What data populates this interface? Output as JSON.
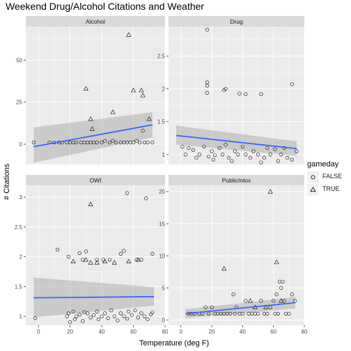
{
  "figure": {
    "title": "Weekend Drug/Alcohol Citations and Weather",
    "ylabel": "# Citations",
    "xlabel": "Temperature (deg F)"
  },
  "legend": {
    "title": "gameday",
    "items": [
      {
        "label": "FALSE",
        "shape": "circle"
      },
      {
        "label": "TRUE",
        "shape": "triangle"
      }
    ]
  },
  "colors": {
    "panel_bg": "#ebebeb",
    "grid_major": "#ffffff",
    "strip_bg": "#d9d9d9",
    "trend_line": "#3366ff",
    "ribbon": "#999999",
    "axis_text": "#4d4d4d"
  },
  "chart_data": [
    {
      "type": "scatter",
      "panel": "Alcohol",
      "xlim": [
        -8,
        80
      ],
      "ylim": [
        -12,
        70
      ],
      "xticks": [
        0,
        20,
        40,
        60,
        80
      ],
      "yticks": [
        0,
        25,
        50
      ],
      "x_tick_labels_shown": false,
      "series": [
        {
          "name": "FALSE",
          "shape": "circle",
          "points": [
            [
              -3,
              1
            ],
            [
              7,
              1
            ],
            [
              10,
              1
            ],
            [
              13,
              1
            ],
            [
              15,
              1
            ],
            [
              18,
              1
            ],
            [
              20,
              1
            ],
            [
              22,
              1
            ],
            [
              24,
              1
            ],
            [
              27,
              1
            ],
            [
              29,
              1
            ],
            [
              31,
              1
            ],
            [
              33,
              1
            ],
            [
              35,
              1
            ],
            [
              37,
              1
            ],
            [
              40,
              1
            ],
            [
              42,
              2
            ],
            [
              45,
              1
            ],
            [
              47,
              2
            ],
            [
              49,
              1
            ],
            [
              52,
              1
            ],
            [
              54,
              1
            ],
            [
              56,
              1
            ],
            [
              58,
              1
            ],
            [
              60,
              1
            ],
            [
              62,
              2
            ],
            [
              64,
              1
            ],
            [
              66,
              8
            ],
            [
              67,
              1
            ],
            [
              69,
              1
            ],
            [
              72,
              1
            ]
          ]
        },
        {
          "name": "TRUE",
          "shape": "triangle",
          "points": [
            [
              30,
              33
            ],
            [
              33,
              15
            ],
            [
              34,
              9
            ],
            [
              47,
              19
            ],
            [
              57,
              65
            ],
            [
              60,
              32
            ],
            [
              65,
              32
            ],
            [
              66,
              29
            ],
            [
              70,
              15
            ]
          ]
        }
      ],
      "trend": {
        "x": [
          -3,
          72
        ],
        "y": [
          -1.5,
          11.5
        ],
        "ci_lower": [
          -11,
          4
        ],
        "ci_upper": [
          10,
          19
        ]
      }
    },
    {
      "type": "scatter",
      "panel": "Drug",
      "xlim": [
        -8,
        80
      ],
      "ylim": [
        0.85,
        2.95
      ],
      "xticks": [
        0,
        20,
        40,
        60,
        80
      ],
      "yticks": [
        1.0,
        1.5,
        2.0,
        2.5
      ],
      "x_tick_labels_shown": false,
      "series": [
        {
          "name": "FALSE",
          "shape": "circle",
          "points": [
            [
              1,
              1.12
            ],
            [
              3,
              1.0
            ],
            [
              5,
              1.1
            ],
            [
              8,
              1.07
            ],
            [
              10,
              0.95
            ],
            [
              12,
              1.0
            ],
            [
              15,
              1.12
            ],
            [
              18,
              0.97
            ],
            [
              20,
              1.05
            ],
            [
              21,
              0.92
            ],
            [
              22,
              0.99
            ],
            [
              25,
              1.1
            ],
            [
              27,
              1.0
            ],
            [
              29,
              1.15
            ],
            [
              31,
              0.95
            ],
            [
              33,
              0.9
            ],
            [
              35,
              1.05
            ],
            [
              37,
              1.0
            ],
            [
              40,
              1.12
            ],
            [
              42,
              1.0
            ],
            [
              45,
              0.95
            ],
            [
              47,
              1.05
            ],
            [
              50,
              1.0
            ],
            [
              52,
              0.88
            ],
            [
              54,
              0.95
            ],
            [
              56,
              1.1
            ],
            [
              58,
              1.0
            ],
            [
              61,
              1.08
            ],
            [
              63,
              0.9
            ],
            [
              65,
              1.0
            ],
            [
              67,
              1.1
            ],
            [
              69,
              0.95
            ],
            [
              72,
              0.92
            ],
            [
              75,
              1.05
            ],
            [
              17,
              2.9
            ],
            [
              17,
              2.1
            ],
            [
              17,
              2.05
            ],
            [
              17,
              1.94
            ],
            [
              28,
              1.98
            ],
            [
              29,
              2.0
            ],
            [
              38,
              1.93
            ],
            [
              42,
              1.92
            ],
            [
              52,
              1.92
            ],
            [
              72,
              2.07
            ]
          ]
        },
        {
          "name": "TRUE",
          "shape": "triangle",
          "points": []
        }
      ],
      "trend": {
        "x": [
          -3,
          75
        ],
        "y": [
          1.29,
          1.09
        ],
        "ci_lower": [
          1.15,
          0.98
        ],
        "ci_upper": [
          1.44,
          1.2
        ]
      }
    },
    {
      "type": "scatter",
      "panel": "OWI",
      "xlim": [
        -8,
        80
      ],
      "ylim": [
        0.85,
        3.2
      ],
      "xticks": [
        0,
        20,
        40,
        60,
        80
      ],
      "yticks": [
        1.0,
        1.5,
        2.0,
        2.5,
        3.0
      ],
      "x_tick_labels_shown": true,
      "series": [
        {
          "name": "FALSE",
          "shape": "circle",
          "points": [
            [
              -2,
              0.97
            ],
            [
              18,
              1.0
            ],
            [
              19,
              1.05
            ],
            [
              20,
              0.9
            ],
            [
              22,
              1.08
            ],
            [
              23,
              0.95
            ],
            [
              24,
              1.0
            ],
            [
              26,
              1.03
            ],
            [
              28,
              0.92
            ],
            [
              29,
              1.07
            ],
            [
              31,
              1.05
            ],
            [
              33,
              0.98
            ],
            [
              35,
              1.02
            ],
            [
              37,
              1.08
            ],
            [
              38,
              0.95
            ],
            [
              40,
              1.0
            ],
            [
              42,
              1.05
            ],
            [
              44,
              0.97
            ],
            [
              46,
              1.1
            ],
            [
              48,
              1.0
            ],
            [
              50,
              0.93
            ],
            [
              52,
              1.05
            ],
            [
              54,
              1.0
            ],
            [
              56,
              0.96
            ],
            [
              57,
              1.08
            ],
            [
              59,
              1.02
            ],
            [
              61,
              1.1
            ],
            [
              63,
              0.98
            ],
            [
              65,
              1.05
            ],
            [
              67,
              1.0
            ],
            [
              69,
              0.95
            ],
            [
              71,
              1.03
            ],
            [
              72,
              1.07
            ],
            [
              12,
              2.12
            ],
            [
              19,
              2.0
            ],
            [
              26,
              2.06
            ],
            [
              28,
              1.95
            ],
            [
              30,
              2.09
            ],
            [
              37,
              1.95
            ],
            [
              41,
              1.95
            ],
            [
              45,
              1.95
            ],
            [
              52,
              2.05
            ],
            [
              54,
              2.1
            ],
            [
              62,
              1.95
            ],
            [
              65,
              1.95
            ],
            [
              72,
              2.05
            ],
            [
              56,
              3.07
            ],
            [
              68,
              2.98
            ]
          ]
        },
        {
          "name": "TRUE",
          "shape": "triangle",
          "points": [
            [
              33,
              2.88
            ],
            [
              22,
              1.92
            ],
            [
              30,
              1.95
            ],
            [
              33,
              1.9
            ],
            [
              37,
              1.9
            ],
            [
              42,
              1.92
            ],
            [
              48,
              1.9
            ],
            [
              57,
              1.92
            ],
            [
              63,
              1.95
            ]
          ]
        }
      ],
      "trend": {
        "x": [
          -3,
          73
        ],
        "y": [
          1.31,
          1.33
        ],
        "ci_lower": [
          0.98,
          1.18
        ],
        "ci_upper": [
          1.65,
          1.49
        ]
      }
    },
    {
      "type": "scatter",
      "panel": "PublicIntox",
      "xlim": [
        -8,
        80
      ],
      "ylim": [
        -0.8,
        21
      ],
      "xticks": [
        0,
        20,
        40,
        60,
        80
      ],
      "yticks": [
        0,
        5,
        10,
        15,
        20
      ],
      "x_tick_labels_shown": true,
      "series": [
        {
          "name": "FALSE",
          "shape": "circle",
          "points": [
            [
              5,
              1
            ],
            [
              7,
              1
            ],
            [
              9,
              1
            ],
            [
              12,
              1
            ],
            [
              14,
              1
            ],
            [
              16,
              2
            ],
            [
              18,
              1
            ],
            [
              20,
              2
            ],
            [
              22,
              1
            ],
            [
              24,
              1
            ],
            [
              26,
              1
            ],
            [
              28,
              1
            ],
            [
              30,
              1
            ],
            [
              32,
              1
            ],
            [
              34,
              4
            ],
            [
              35,
              1
            ],
            [
              36,
              2
            ],
            [
              38,
              1
            ],
            [
              40,
              1
            ],
            [
              42,
              3
            ],
            [
              44,
              1
            ],
            [
              46,
              1
            ],
            [
              48,
              1
            ],
            [
              50,
              1
            ],
            [
              52,
              3
            ],
            [
              54,
              1
            ],
            [
              56,
              1
            ],
            [
              58,
              2
            ],
            [
              60,
              3
            ],
            [
              61,
              1
            ],
            [
              62,
              4
            ],
            [
              63,
              1
            ],
            [
              64,
              6
            ],
            [
              65,
              5
            ],
            [
              66,
              6
            ],
            [
              67,
              3
            ],
            [
              68,
              1
            ],
            [
              70,
              1
            ],
            [
              72,
              4
            ],
            [
              74,
              3
            ]
          ]
        },
        {
          "name": "TRUE",
          "shape": "triangle",
          "points": [
            [
              28,
              8
            ],
            [
              45,
              3
            ],
            [
              48,
              2
            ],
            [
              55,
              2
            ],
            [
              58,
              20
            ],
            [
              62,
              9
            ],
            [
              65,
              3
            ]
          ]
        }
      ],
      "trend": {
        "x": [
          3,
          74
        ],
        "y": [
          1.0,
          2.7
        ],
        "ci_lower": [
          0.3,
          1.8
        ],
        "ci_upper": [
          1.7,
          3.6
        ]
      }
    }
  ]
}
